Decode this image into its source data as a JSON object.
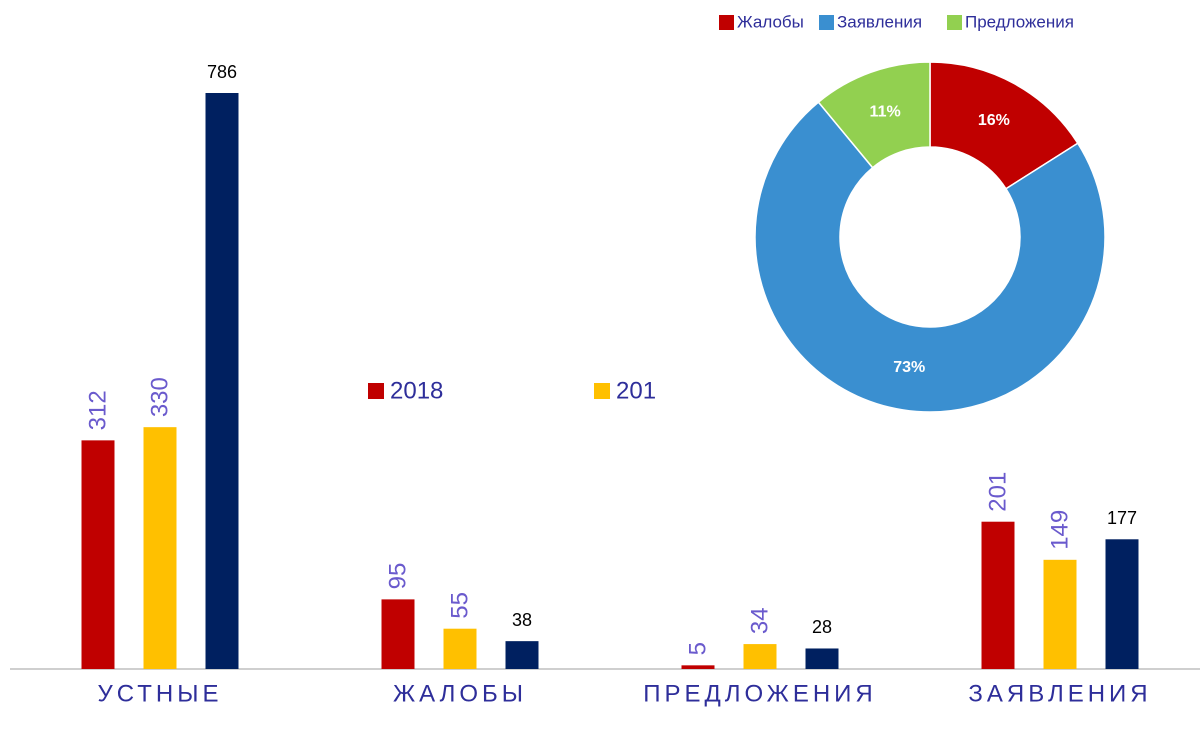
{
  "chart_data": [
    {
      "type": "bar",
      "categories": [
        "УСТНЫЕ",
        "ЖАЛОБЫ",
        "ПРЕДЛОЖЕНИЯ",
        "ЗАЯВЛЕНИЯ"
      ],
      "series": [
        {
          "name": "2018",
          "color": "#c00000",
          "values": [
            312,
            95,
            5,
            201
          ]
        },
        {
          "name": "201",
          "color": "#ffc000",
          "values": [
            330,
            55,
            34,
            149
          ]
        },
        {
          "color": "#002060",
          "values": [
            786,
            38,
            28,
            177
          ]
        }
      ]
    },
    {
      "type": "donut",
      "categories": [
        "Жалобы",
        "Заявления",
        "Предложения"
      ],
      "values": [
        16,
        73,
        11
      ],
      "value_labels": [
        "16%",
        "73%",
        "11%"
      ],
      "colors": [
        "#c00000",
        "#3a8fd0",
        "#92d050"
      ]
    }
  ]
}
